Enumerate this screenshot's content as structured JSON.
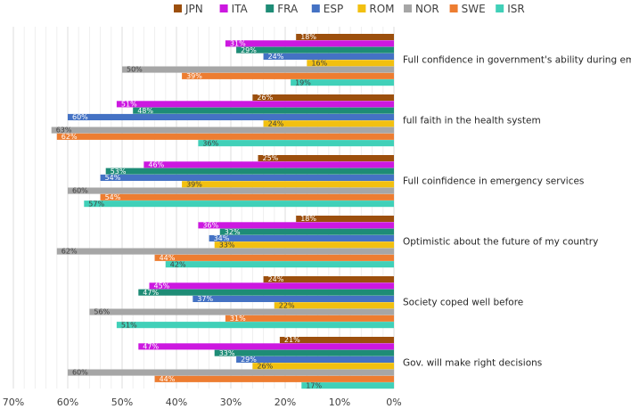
{
  "chart_data": {
    "type": "bar",
    "orientation": "horizontal",
    "reversed_x_axis": true,
    "xlim": [
      0,
      70
    ],
    "x_ticks": [
      "70%",
      "60%",
      "50%",
      "40%",
      "30%",
      "20%",
      "10%",
      "0%"
    ],
    "x_tick_values": [
      70,
      60,
      50,
      40,
      30,
      20,
      10,
      0
    ],
    "grid": true,
    "legend_position": "top",
    "categories": [
      "Full confidence in government's ability during emergencies",
      "full faith in the health system",
      "Full coinfidence in emergency services",
      "Optimistic about the future of my country",
      "Society coped well before",
      "Gov. will make right decisions"
    ],
    "series": [
      {
        "name": "JPN",
        "color": "#9c4f0d",
        "values": [
          18,
          26,
          25,
          18,
          24,
          21
        ],
        "labels": [
          "18%",
          "26%",
          "25%",
          "18%",
          "24%",
          "21%"
        ]
      },
      {
        "name": "ITA",
        "color": "#cc18e0",
        "values": [
          31,
          51,
          46,
          36,
          45,
          47
        ],
        "labels": [
          "31%",
          "51%",
          "46%",
          "36%",
          "45%",
          "47%"
        ]
      },
      {
        "name": "FRA",
        "color": "#1e8c76",
        "values": [
          29,
          48,
          53,
          32,
          47,
          33
        ],
        "labels": [
          "29%",
          "48%",
          "53%",
          "32%",
          "47%",
          "33%"
        ]
      },
      {
        "name": "ESP",
        "color": "#4472c4",
        "values": [
          24,
          60,
          54,
          34,
          37,
          29
        ],
        "labels": [
          "24%",
          "60%",
          "54%",
          "34%",
          "37%",
          "29%"
        ]
      },
      {
        "name": "ROM",
        "color": "#f2c010",
        "values": [
          16,
          24,
          39,
          33,
          22,
          26
        ],
        "labels": [
          "16%",
          "24%",
          "39%",
          "33%",
          "22%",
          "26%"
        ]
      },
      {
        "name": "NOR",
        "color": "#a6a6a6",
        "values": [
          50,
          63,
          60,
          62,
          56,
          60
        ],
        "labels": [
          "50%",
          "63%",
          "60%",
          "62%",
          "56%",
          "60%"
        ]
      },
      {
        "name": "SWE",
        "color": "#ed7d31",
        "values": [
          39,
          62,
          54,
          44,
          31,
          44
        ],
        "labels": [
          "39%",
          "62%",
          "54%",
          "44%",
          "31%",
          "44%"
        ]
      },
      {
        "name": "ISR",
        "color": "#40d0b8",
        "values": [
          19,
          36,
          57,
          42,
          51,
          17
        ],
        "labels": [
          "19%",
          "36%",
          "57%",
          "42%",
          "51%",
          "17%"
        ]
      }
    ]
  }
}
